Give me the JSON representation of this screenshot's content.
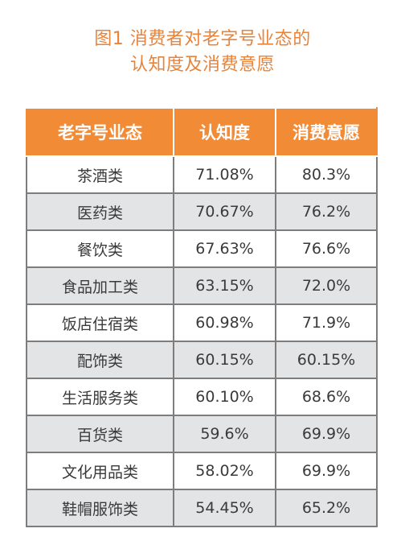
{
  "title_line1": "图1 消费者对老字号业态的",
  "title_line2": "认知度及消费意愿",
  "chart_data": {
    "type": "table",
    "columns": [
      "老字号业态",
      "认知度",
      "消费意愿"
    ],
    "rows": [
      [
        "茶酒类",
        "71.08%",
        "80.3%"
      ],
      [
        "医药类",
        "70.67%",
        "76.2%"
      ],
      [
        "餐饮类",
        "67.63%",
        "76.6%"
      ],
      [
        "食品加工类",
        "63.15%",
        "72.0%"
      ],
      [
        "饭店住宿类",
        "60.98%",
        "71.9%"
      ],
      [
        "配饰类",
        "60.15%",
        "60.15%"
      ],
      [
        "生活服务类",
        "60.10%",
        "68.6%"
      ],
      [
        "百货类",
        "59.6%",
        "69.9%"
      ],
      [
        "文化用品类",
        "58.02%",
        "69.9%"
      ],
      [
        "鞋帽服饰类",
        "54.45%",
        "65.2%"
      ]
    ]
  },
  "colors": {
    "title": "#e8833a",
    "header_bg": "#f28b35",
    "header_text": "#ffffff",
    "row_alt_bg": "#e3e4e6",
    "grid": "#7d7d7d"
  }
}
